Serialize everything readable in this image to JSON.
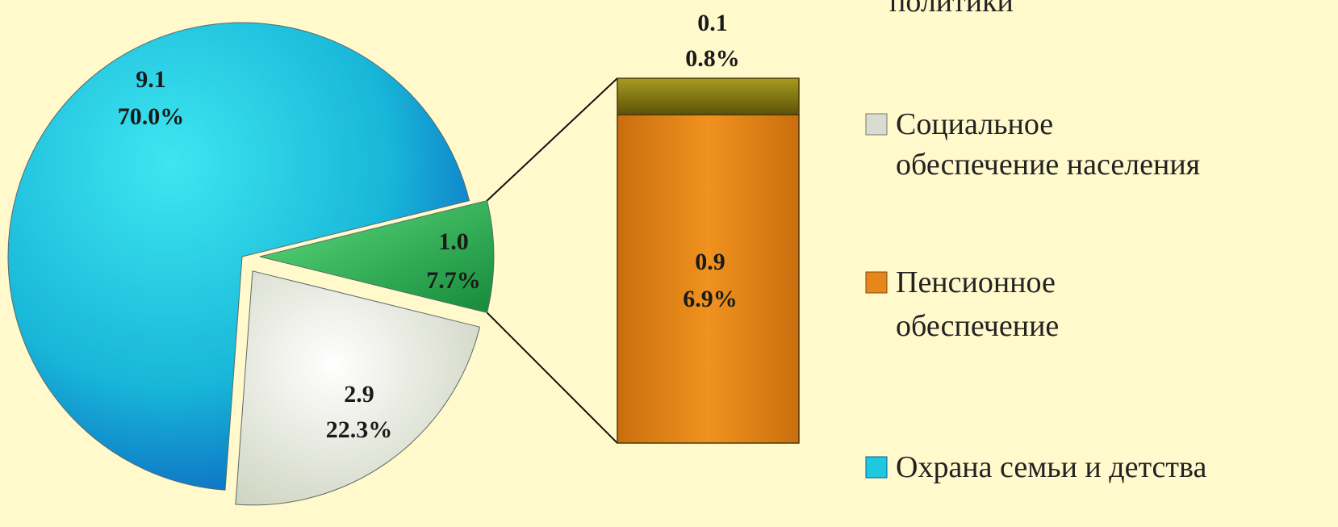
{
  "chart_data": {
    "type": "bar-of-pie",
    "unit": "",
    "pie": {
      "slices": [
        {
          "name": "Охрана семьи и детства",
          "value": 9.1,
          "percent": "70.0%",
          "color": "#1ec8df"
        },
        {
          "name": "Социальное обеспечение населения",
          "value": 2.9,
          "percent": "22.3%",
          "color": "#e8ebd8"
        },
        {
          "name": "",
          "value": 1.0,
          "percent": "7.7%",
          "color": "#2bbf5a"
        }
      ]
    },
    "bar": {
      "segments": [
        {
          "name": "Пенсионное обеспечение",
          "value": 0.9,
          "percent": "6.9%",
          "color": "#e8861a"
        },
        {
          "name": "",
          "value": 0.1,
          "percent": "0.8%",
          "color": "#8a7d10"
        }
      ]
    },
    "labels": {
      "pie_blue": [
        "9.1",
        "70.0%"
      ],
      "pie_white": [
        "2.9",
        "22.3%"
      ],
      "pie_green": [
        "1.0",
        "7.7%"
      ],
      "bar_orange": [
        "0.9",
        "6.9%"
      ],
      "bar_olive": [
        "0.1",
        "0.8%"
      ]
    },
    "legend": {
      "position": "right",
      "entries": [
        {
          "lines": [
            "политики"
          ],
          "color": "",
          "marker": false
        },
        {
          "lines": [
            "Социальное",
            "обеспечение населения"
          ],
          "color": "#d9ddd0",
          "marker": true
        },
        {
          "lines": [
            "Пенсионное",
            "обеспечение"
          ],
          "color": "#e8861a",
          "marker": true
        },
        {
          "lines": [
            "Охрана семьи и детства"
          ],
          "color": "#1ec8df",
          "marker": true
        }
      ]
    }
  }
}
